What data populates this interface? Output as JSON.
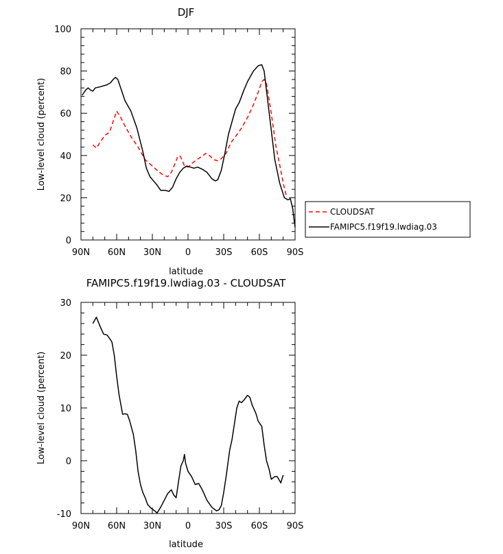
{
  "chart_data": [
    {
      "type": "line",
      "title": "DJF",
      "xlabel": "latitude",
      "ylabel": "Low-level cloud (percent)",
      "xlim": [
        90,
        -90
      ],
      "ylim": [
        0,
        100
      ],
      "x_ticks": [
        90,
        60,
        30,
        0,
        -30,
        -60,
        -90
      ],
      "x_tick_labels": [
        "90N",
        "60N",
        "30N",
        "0",
        "30S",
        "60S",
        "90S"
      ],
      "y_ticks": [
        0,
        20,
        40,
        60,
        80,
        100
      ],
      "y_tick_labels": [
        "0",
        "20",
        "40",
        "60",
        "80",
        "100"
      ],
      "grid": false,
      "legend_position": "outside-right",
      "series": [
        {
          "name": "CLOUDSAT",
          "color": "#ff0000",
          "style": "dashed",
          "points": [
            [
              80,
              45
            ],
            [
              77,
              43.5
            ],
            [
              73,
              47
            ],
            [
              70,
              49.5
            ],
            [
              66,
              51
            ],
            [
              63,
              56
            ],
            [
              60,
              61
            ],
            [
              57,
              58.5
            ],
            [
              53,
              54
            ],
            [
              48,
              49
            ],
            [
              42,
              44
            ],
            [
              36,
              38
            ],
            [
              32,
              36
            ],
            [
              28,
              34
            ],
            [
              24,
              32
            ],
            [
              20,
              30.5
            ],
            [
              17,
              30
            ],
            [
              14,
              32
            ],
            [
              11,
              36
            ],
            [
              9,
              39
            ],
            [
              7,
              40
            ],
            [
              5,
              38
            ],
            [
              3,
              35
            ],
            [
              0,
              34.5
            ],
            [
              -5,
              37
            ],
            [
              -10,
              39
            ],
            [
              -15,
              41
            ],
            [
              -18,
              40
            ],
            [
              -22,
              38
            ],
            [
              -25,
              37.5
            ],
            [
              -28,
              38.5
            ],
            [
              -32,
              41
            ],
            [
              -36,
              46
            ],
            [
              -40,
              49
            ],
            [
              -45,
              53
            ],
            [
              -50,
              58
            ],
            [
              -55,
              64
            ],
            [
              -59,
              70
            ],
            [
              -62,
              75
            ],
            [
              -64,
              76
            ],
            [
              -66,
              74
            ],
            [
              -70,
              60
            ],
            [
              -74,
              44
            ],
            [
              -78,
              33
            ],
            [
              -80,
              27
            ],
            [
              -83,
              20
            ]
          ]
        },
        {
          "name": "FAMIPC5.f19f19.lwdiag.03",
          "color": "#000000",
          "style": "solid",
          "points": [
            [
              89,
              68.5
            ],
            [
              86,
              71
            ],
            [
              84,
              72
            ],
            [
              82,
              71
            ],
            [
              80,
              70.5
            ],
            [
              78,
              72
            ],
            [
              74,
              72.5
            ],
            [
              68,
              73.5
            ],
            [
              65,
              74.5
            ],
            [
              63,
              76
            ],
            [
              61,
              77
            ],
            [
              59,
              76
            ],
            [
              56,
              71
            ],
            [
              53,
              66
            ],
            [
              48,
              61
            ],
            [
              43,
              53
            ],
            [
              38,
              42
            ],
            [
              35,
              34
            ],
            [
              32,
              30
            ],
            [
              29,
              28
            ],
            [
              26,
              26
            ],
            [
              23,
              23.5
            ],
            [
              19,
              23.5
            ],
            [
              16,
              23
            ],
            [
              13,
              25
            ],
            [
              10,
              29
            ],
            [
              7,
              32
            ],
            [
              4,
              34
            ],
            [
              1,
              35
            ],
            [
              -2,
              34.5
            ],
            [
              -5,
              34
            ],
            [
              -8,
              34.5
            ],
            [
              -12,
              33.5
            ],
            [
              -16,
              32
            ],
            [
              -20,
              29
            ],
            [
              -23,
              28
            ],
            [
              -25,
              28.5
            ],
            [
              -28,
              33
            ],
            [
              -31,
              41
            ],
            [
              -34,
              50
            ],
            [
              -37,
              56
            ],
            [
              -40,
              62
            ],
            [
              -43,
              65
            ],
            [
              -47,
              71
            ],
            [
              -50,
              75
            ],
            [
              -55,
              80
            ],
            [
              -59,
              82.5
            ],
            [
              -62,
              83
            ],
            [
              -64,
              80
            ],
            [
              -67,
              66
            ],
            [
              -70,
              52
            ],
            [
              -73,
              38
            ],
            [
              -77,
              27
            ],
            [
              -81,
              20
            ],
            [
              -84,
              19
            ],
            [
              -86,
              19.5
            ],
            [
              -88,
              15
            ],
            [
              -90,
              6
            ]
          ]
        }
      ]
    },
    {
      "type": "line",
      "title": "FAMIPC5.f19f19.lwdiag.03 - CLOUDSAT",
      "xlabel": "latitude",
      "ylabel": "Low-level cloud (percent)",
      "xlim": [
        90,
        -90
      ],
      "ylim": [
        -10,
        30
      ],
      "x_ticks": [
        90,
        60,
        30,
        0,
        -30,
        -60,
        -90
      ],
      "x_tick_labels": [
        "90N",
        "60N",
        "30N",
        "0",
        "30S",
        "60S",
        "90S"
      ],
      "y_ticks": [
        -10,
        0,
        10,
        20,
        30
      ],
      "y_tick_labels": [
        "-10",
        "0",
        "10",
        "20",
        "30"
      ],
      "grid": false,
      "series": [
        {
          "color": "#000000",
          "style": "solid",
          "points": [
            [
              80,
              26
            ],
            [
              77,
              27.2
            ],
            [
              74,
              25.5
            ],
            [
              71,
              24
            ],
            [
              68,
              23.8
            ],
            [
              66,
              23.2
            ],
            [
              64,
              22.5
            ],
            [
              62,
              20
            ],
            [
              60,
              16
            ],
            [
              58,
              12.5
            ],
            [
              55,
              8.8
            ],
            [
              53,
              8.9
            ],
            [
              51,
              8.8
            ],
            [
              49,
              7.5
            ],
            [
              46,
              5
            ],
            [
              44,
              2
            ],
            [
              42,
              -2
            ],
            [
              40,
              -4.5
            ],
            [
              38,
              -6
            ],
            [
              36,
              -7
            ],
            [
              34,
              -8.3
            ],
            [
              31,
              -9
            ],
            [
              28,
              -9.5
            ],
            [
              26,
              -9.9
            ],
            [
              23,
              -8.8
            ],
            [
              20,
              -7.5
            ],
            [
              17,
              -6.2
            ],
            [
              14,
              -5.5
            ],
            [
              12,
              -6.5
            ],
            [
              10,
              -7
            ],
            [
              8,
              -4
            ],
            [
              6,
              -1
            ],
            [
              4,
              0
            ],
            [
              3,
              1.2
            ],
            [
              2,
              -0.5
            ],
            [
              0,
              -2
            ],
            [
              -3,
              -3
            ],
            [
              -6,
              -4.5
            ],
            [
              -9,
              -4.3
            ],
            [
              -12,
              -5.5
            ],
            [
              -16,
              -7.5
            ],
            [
              -20,
              -8.8
            ],
            [
              -24,
              -9.5
            ],
            [
              -26,
              -9.3
            ],
            [
              -28,
              -8.5
            ],
            [
              -30,
              -6
            ],
            [
              -32,
              -3
            ],
            [
              -35,
              2
            ],
            [
              -37,
              4
            ],
            [
              -39,
              7
            ],
            [
              -41,
              10
            ],
            [
              -43,
              11.3
            ],
            [
              -45,
              11
            ],
            [
              -47,
              11.5
            ],
            [
              -50,
              12.4
            ],
            [
              -52,
              12
            ],
            [
              -54,
              10.5
            ],
            [
              -57,
              9
            ],
            [
              -59,
              7.5
            ],
            [
              -62,
              6.5
            ],
            [
              -64,
              3
            ],
            [
              -66,
              0
            ],
            [
              -68,
              -1.5
            ],
            [
              -70,
              -3.5
            ],
            [
              -73,
              -3
            ],
            [
              -75,
              -3
            ],
            [
              -78,
              -4.2
            ],
            [
              -80,
              -2.7
            ]
          ]
        }
      ]
    }
  ]
}
